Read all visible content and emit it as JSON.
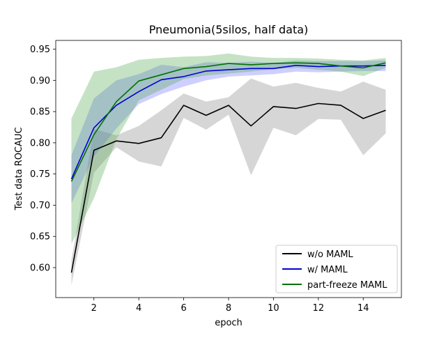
{
  "chart_data": {
    "type": "line",
    "title": "Pneumonia(5silos, half data)",
    "xlabel": "epoch",
    "ylabel": "Test data ROCAUC",
    "xlim": [
      0.3,
      15.7
    ],
    "ylim": [
      0.552,
      0.964
    ],
    "xticks": [
      2,
      4,
      6,
      8,
      10,
      12,
      14
    ],
    "yticks": [
      0.6,
      0.65,
      0.7,
      0.75,
      0.8,
      0.85,
      0.9,
      0.95
    ],
    "grid": false,
    "legend_position": "lower right",
    "x": [
      1,
      2,
      3,
      4,
      5,
      6,
      7,
      8,
      9,
      10,
      11,
      12,
      13,
      14,
      15
    ],
    "series": [
      {
        "name": "w/o MAML",
        "color": "#000000",
        "band_color": "#808080",
        "values": [
          0.592,
          0.788,
          0.803,
          0.799,
          0.808,
          0.86,
          0.844,
          0.86,
          0.827,
          0.858,
          0.855,
          0.863,
          0.86,
          0.839,
          0.852
        ],
        "lower": [
          0.572,
          0.752,
          0.793,
          0.77,
          0.762,
          0.84,
          0.821,
          0.845,
          0.748,
          0.824,
          0.812,
          0.838,
          0.837,
          0.78,
          0.815
        ],
        "upper": [
          0.612,
          0.822,
          0.812,
          0.827,
          0.852,
          0.879,
          0.866,
          0.873,
          0.903,
          0.89,
          0.896,
          0.888,
          0.882,
          0.898,
          0.885
        ]
      },
      {
        "name": "w/ MAML",
        "color": "#0000d0",
        "band_color": "#6a6aff",
        "values": [
          0.742,
          0.824,
          0.86,
          0.882,
          0.901,
          0.906,
          0.915,
          0.917,
          0.919,
          0.919,
          0.924,
          0.922,
          0.923,
          0.923,
          0.924
        ],
        "lower": [
          0.703,
          0.778,
          0.823,
          0.862,
          0.878,
          0.89,
          0.9,
          0.906,
          0.908,
          0.91,
          0.914,
          0.913,
          0.914,
          0.915,
          0.915
        ],
        "upper": [
          0.78,
          0.871,
          0.9,
          0.91,
          0.925,
          0.921,
          0.929,
          0.928,
          0.93,
          0.928,
          0.932,
          0.931,
          0.931,
          0.931,
          0.932
        ]
      },
      {
        "name": "part-freeze MAML",
        "color": "#007000",
        "band_color": "#4ca64c",
        "values": [
          0.738,
          0.813,
          0.866,
          0.899,
          0.909,
          0.919,
          0.922,
          0.927,
          0.925,
          0.927,
          0.928,
          0.927,
          0.923,
          0.92,
          0.928
        ],
        "lower": [
          0.638,
          0.711,
          0.806,
          0.868,
          0.885,
          0.902,
          0.908,
          0.911,
          0.914,
          0.918,
          0.92,
          0.917,
          0.914,
          0.907,
          0.92
        ],
        "upper": [
          0.839,
          0.914,
          0.921,
          0.933,
          0.936,
          0.938,
          0.939,
          0.943,
          0.938,
          0.936,
          0.936,
          0.935,
          0.933,
          0.932,
          0.936
        ]
      }
    ]
  }
}
